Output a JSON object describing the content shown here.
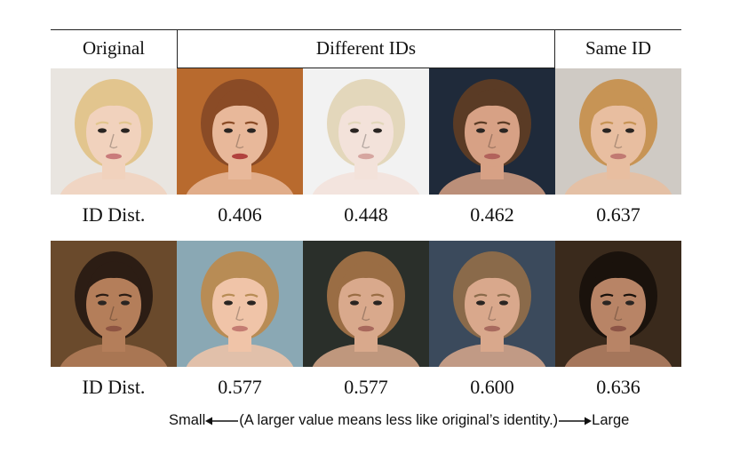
{
  "headers": {
    "original": "Original",
    "different": "Different IDs",
    "same": "Same ID"
  },
  "rows": [
    {
      "label": "ID Dist.",
      "values": [
        "0.406",
        "0.448",
        "0.462",
        "0.637"
      ],
      "faces": [
        {
          "bg": "#e9e5e0",
          "hair": "#e2c58e",
          "skin": "#f1d2bd",
          "lip": "#c97b7b"
        },
        {
          "bg": "#b86a2e",
          "hair": "#8a4b26",
          "skin": "#e8b89a",
          "lip": "#b1423e"
        },
        {
          "bg": "#f2f2f2",
          "hair": "#e3d7bb",
          "skin": "#f3e2da",
          "lip": "#d6a6a0"
        },
        {
          "bg": "#1f2a3a",
          "hair": "#5a3b25",
          "skin": "#d7a185",
          "lip": "#b2625b"
        },
        {
          "bg": "#cfcac4",
          "hair": "#c79455",
          "skin": "#e8bea0",
          "lip": "#c17a72"
        }
      ]
    },
    {
      "label": "ID Dist.",
      "values": [
        "0.577",
        "0.577",
        "0.600",
        "0.636"
      ],
      "faces": [
        {
          "bg": "#6a4a2c",
          "hair": "#2c1d14",
          "skin": "#b47e5a",
          "lip": "#8e5442"
        },
        {
          "bg": "#8aa8b4",
          "hair": "#b88c55",
          "skin": "#f0c4a8",
          "lip": "#c47c72"
        },
        {
          "bg": "#2a2f2a",
          "hair": "#9a6d44",
          "skin": "#d9a98c",
          "lip": "#a8685c"
        },
        {
          "bg": "#3b4a5c",
          "hair": "#8a6a4a",
          "skin": "#d9a88c",
          "lip": "#a86a5e"
        },
        {
          "bg": "#3a2a1c",
          "hair": "#1a120c",
          "skin": "#b88466",
          "lip": "#8c5446"
        }
      ]
    }
  ],
  "caption": {
    "left": "Small",
    "middle": "(A larger value means less like original’s identity.)",
    "right": "Large"
  }
}
